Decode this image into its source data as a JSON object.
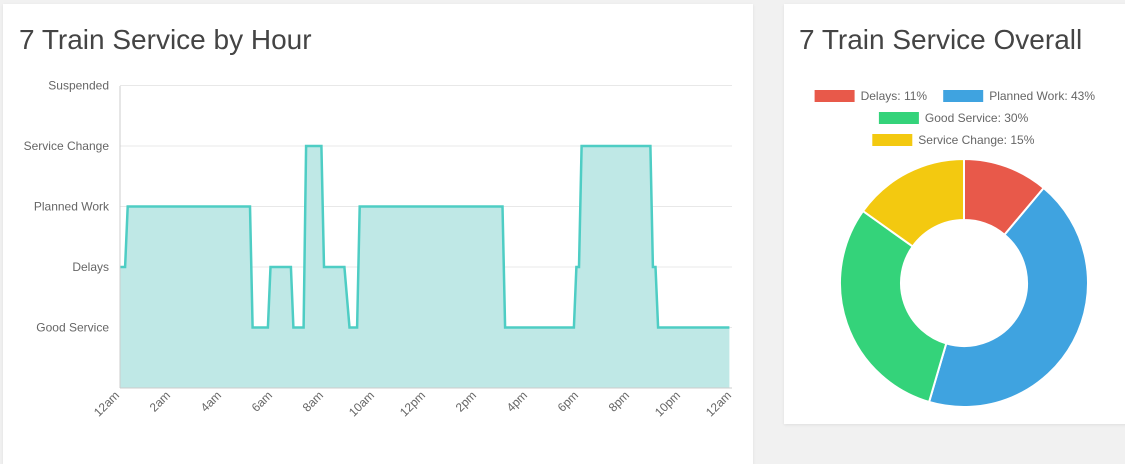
{
  "cards": {
    "hourly_title": "7 Train Service by Hour",
    "overall_title": "7 Train Service Overall"
  },
  "colors": {
    "line": "#4ecdc4",
    "fill": "#bfe8e6",
    "grid": "#e8e8e8",
    "axis": "#cccccc"
  },
  "chart_data": [
    {
      "type": "area",
      "title": "7 Train Service by Hour",
      "y_categories": [
        "Good Service",
        "Delays",
        "Planned Work",
        "Service Change",
        "Suspended"
      ],
      "x_tick_labels": [
        "12am",
        "2am",
        "4am",
        "6am",
        "8am",
        "10am",
        "12pm",
        "2pm",
        "4pm",
        "6pm",
        "8pm",
        "10pm",
        "12am"
      ],
      "x_range_hours": [
        0,
        24
      ],
      "y_levels": {
        "Good Service": 1,
        "Delays": 2,
        "Planned Work": 3,
        "Service Change": 4,
        "Suspended": 5
      },
      "series": [
        {
          "points": [
            [
              0.0,
              2
            ],
            [
              0.2,
              2
            ],
            [
              0.3,
              3
            ],
            [
              5.1,
              3
            ],
            [
              5.2,
              1
            ],
            [
              5.8,
              1
            ],
            [
              5.9,
              2
            ],
            [
              6.7,
              2
            ],
            [
              6.8,
              1
            ],
            [
              7.2,
              1
            ],
            [
              7.3,
              4
            ],
            [
              7.9,
              4
            ],
            [
              8.0,
              2
            ],
            [
              8.8,
              2
            ],
            [
              9.0,
              1
            ],
            [
              9.3,
              1
            ],
            [
              9.4,
              3
            ],
            [
              15.0,
              3
            ],
            [
              15.1,
              1
            ],
            [
              17.8,
              1
            ],
            [
              17.9,
              2
            ],
            [
              18.0,
              2
            ],
            [
              18.1,
              4
            ],
            [
              20.8,
              4
            ],
            [
              20.9,
              2
            ],
            [
              21.0,
              2
            ],
            [
              21.1,
              1
            ],
            [
              23.9,
              1
            ]
          ]
        }
      ],
      "grid": true
    },
    {
      "type": "pie",
      "title": "7 Train Service Overall",
      "donut": true,
      "legend_position": "top",
      "slices": [
        {
          "label": "Delays",
          "value": 11,
          "legend": "Delays: 11%",
          "color": "#e8594a"
        },
        {
          "label": "Planned Work",
          "value": 43,
          "legend": "Planned Work: 43%",
          "color": "#3fa3e0"
        },
        {
          "label": "Good Service",
          "value": 30,
          "legend": "Good Service: 30%",
          "color": "#34d37a"
        },
        {
          "label": "Service Change",
          "value": 15,
          "legend": "Service Change: 15%",
          "color": "#f3c910"
        }
      ]
    }
  ]
}
